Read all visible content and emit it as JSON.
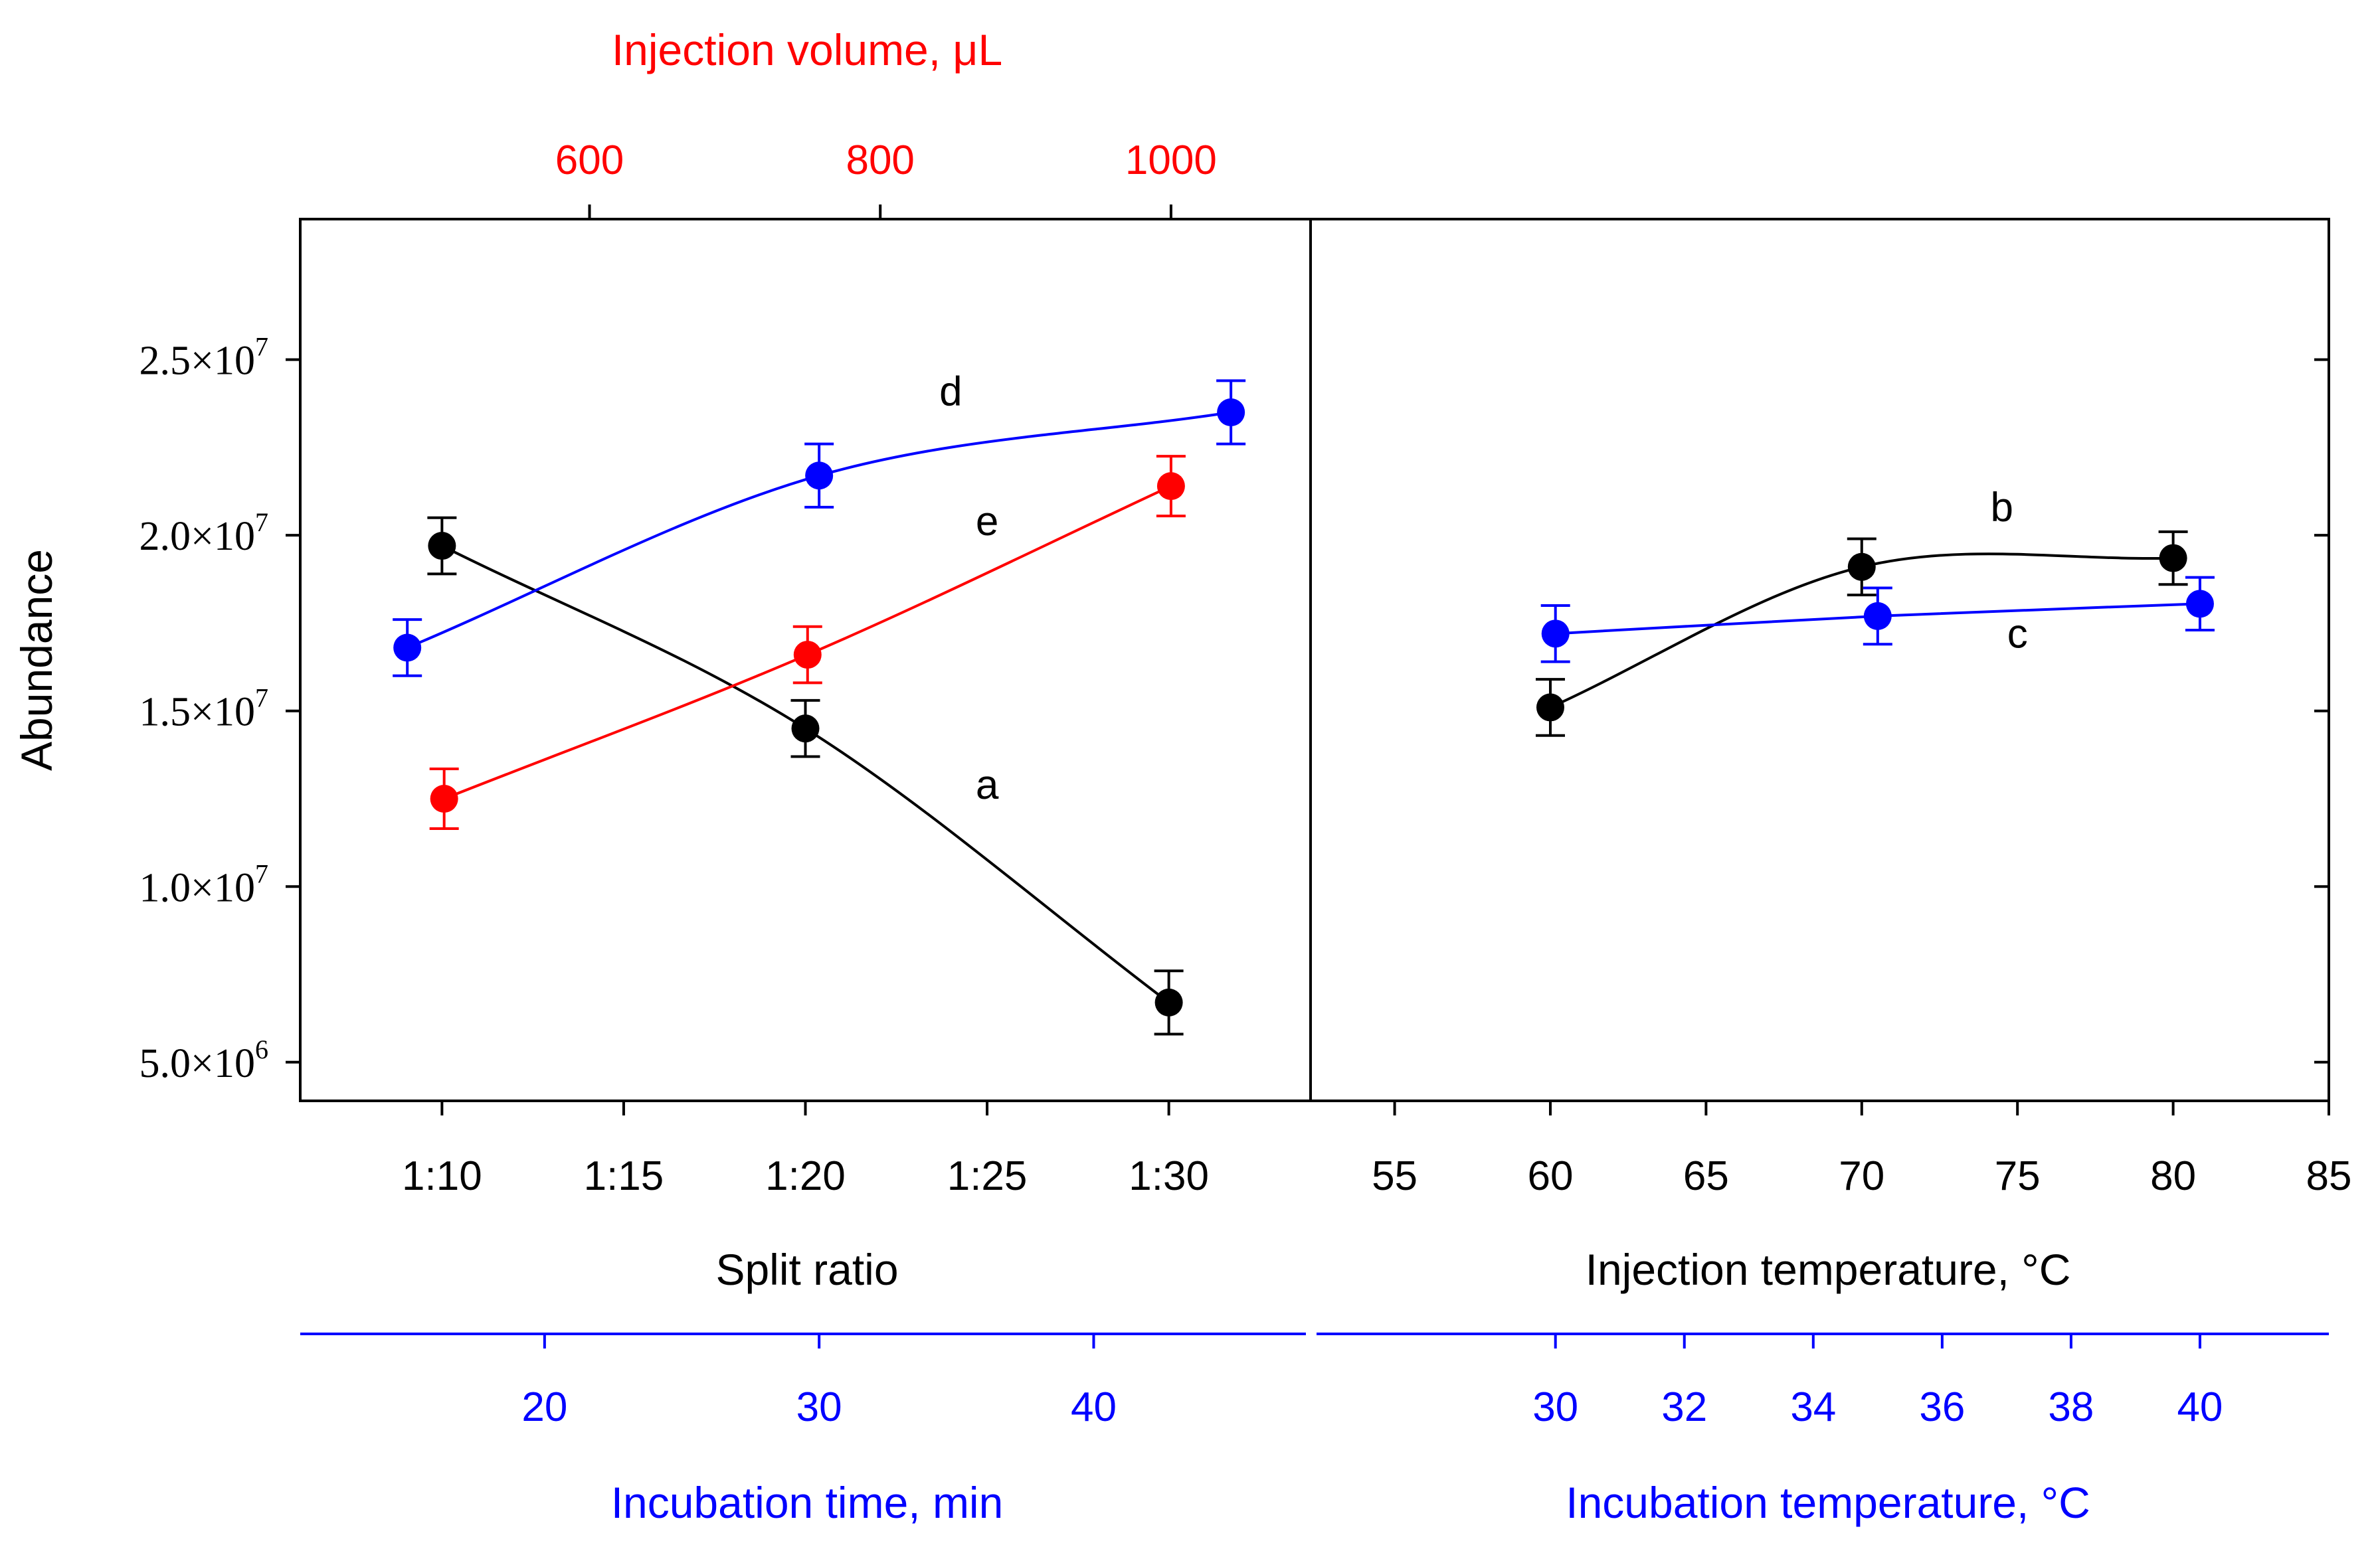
{
  "chart_data": {
    "type": "scatter",
    "ylabel": "Abundance",
    "y_ticks": [
      {
        "value": 5000000,
        "mantissa": "5.0",
        "times": "×",
        "base": "10",
        "exp": "6"
      },
      {
        "value": 10000000,
        "mantissa": "1.0",
        "times": "×",
        "base": "10",
        "exp": "7"
      },
      {
        "value": 15000000,
        "mantissa": "1.5",
        "times": "×",
        "base": "10",
        "exp": "7"
      },
      {
        "value": 20000000,
        "mantissa": "2.0",
        "times": "×",
        "base": "10",
        "exp": "7"
      },
      {
        "value": 25000000,
        "mantissa": "2.5",
        "times": "×",
        "base": "10",
        "exp": "7"
      }
    ],
    "ylim": [
      3900000,
      29000000
    ],
    "panels": {
      "left": {
        "xlabel_bottom": "Split ratio",
        "x_ticks": [
          {
            "value": 10,
            "label": "1:10"
          },
          {
            "value": 15,
            "label": "1:15"
          },
          {
            "value": 20,
            "label": "1:20"
          },
          {
            "value": 25,
            "label": "1:25"
          },
          {
            "value": 30,
            "label": "1:30"
          }
        ],
        "xlim": [
          6.1,
          33.9
        ],
        "xlabel_top": "Injection volume, μL",
        "top_ticks": [
          {
            "value": 600,
            "label": "600"
          },
          {
            "value": 800,
            "label": "800"
          },
          {
            "value": 1000,
            "label": "1000"
          }
        ],
        "top_xlim": [
          401,
          1096
        ],
        "xlabel_blue": "Incubation time, min",
        "blue_ticks": [
          {
            "value": 20,
            "label": "20"
          },
          {
            "value": 30,
            "label": "30"
          },
          {
            "value": 40,
            "label": "40"
          }
        ],
        "blue_xlim": [
          11.1,
          47.9
        ]
      },
      "right": {
        "xlabel_bottom": "Injection temperature, °C",
        "x_ticks": [
          {
            "value": 55,
            "label": "55"
          },
          {
            "value": 60,
            "label": "60"
          },
          {
            "value": 65,
            "label": "65"
          },
          {
            "value": 70,
            "label": "70"
          },
          {
            "value": 75,
            "label": "75"
          },
          {
            "value": 80,
            "label": "80"
          },
          {
            "value": 85,
            "label": "85"
          }
        ],
        "xlim": [
          52.3,
          85
        ],
        "xlabel_blue": "Incubation temperature, °C",
        "blue_ticks": [
          {
            "value": 30,
            "label": "30"
          },
          {
            "value": 32,
            "label": "32"
          },
          {
            "value": 34,
            "label": "34"
          },
          {
            "value": 36,
            "label": "36"
          },
          {
            "value": 38,
            "label": "38"
          },
          {
            "value": 40,
            "label": "40"
          }
        ],
        "blue_xlim": [
          26.2,
          42
        ]
      }
    },
    "series": [
      {
        "name": "a",
        "panel": "left",
        "axis": "bottom",
        "color": "#000000",
        "x": [
          10,
          20,
          30
        ],
        "y": [
          19700000,
          14500000,
          6700000
        ],
        "err": [
          800000,
          800000,
          900000
        ]
      },
      {
        "name": "d",
        "panel": "left",
        "axis": "blue",
        "color": "#0000ff",
        "x": [
          15,
          30,
          45
        ],
        "y": [
          16800000,
          21700000,
          23500000
        ],
        "err": [
          800000,
          900000,
          900000
        ]
      },
      {
        "name": "e",
        "panel": "left",
        "axis": "top",
        "color": "#ff0000",
        "x": [
          500,
          750,
          1000
        ],
        "y": [
          12500000,
          16600000,
          21400000
        ],
        "err": [
          850000,
          800000,
          850000
        ]
      },
      {
        "name": "b",
        "panel": "right",
        "axis": "bottom",
        "color": "#000000",
        "x": [
          60,
          70,
          80
        ],
        "y": [
          15100000,
          19100000,
          19350000
        ],
        "err": [
          800000,
          800000,
          750000
        ]
      },
      {
        "name": "c",
        "panel": "right",
        "axis": "blue",
        "color": "#0000ff",
        "x": [
          30,
          35,
          40
        ],
        "y": [
          17200000,
          17700000,
          18050000
        ],
        "err": [
          800000,
          800000,
          750000
        ]
      }
    ],
    "labels": [
      {
        "text": "a",
        "panel": "left",
        "axis": "bottom",
        "x": 25,
        "y": 12500000
      },
      {
        "text": "d",
        "panel": "left",
        "axis": "bottom",
        "x": 24,
        "y": 23700000
      },
      {
        "text": "e",
        "panel": "left",
        "axis": "bottom",
        "x": 25,
        "y": 20000000
      },
      {
        "text": "b",
        "panel": "right",
        "axis": "bottom",
        "x": 74.5,
        "y": 20400000
      },
      {
        "text": "c",
        "panel": "right",
        "axis": "bottom",
        "x": 75,
        "y": 16800000
      }
    ]
  }
}
